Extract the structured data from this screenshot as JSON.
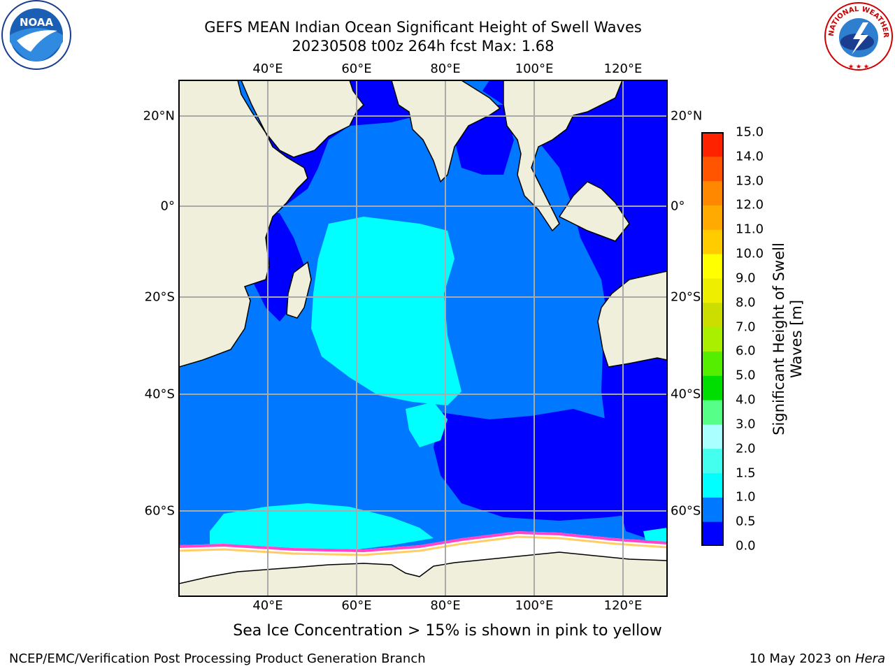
{
  "title_line1": "GEFS MEAN Indian Ocean Significant Height of Swell Waves",
  "title_line2": "20230508 t00z 264h fcst   Max: 1.68",
  "map": {
    "lon_range": [
      20,
      130
    ],
    "lat_range": [
      -78,
      27
    ],
    "lon_ticks": [
      {
        "value": 40,
        "label": "40°E"
      },
      {
        "value": 60,
        "label": "60°E"
      },
      {
        "value": 80,
        "label": "80°E"
      },
      {
        "value": 100,
        "label": "100°E"
      },
      {
        "value": 120,
        "label": "120°E"
      }
    ],
    "lat_ticks": [
      {
        "value": 20,
        "label": "20°N"
      },
      {
        "value": 0,
        "label": "0°"
      },
      {
        "value": -20,
        "label": "20°S"
      },
      {
        "value": -40,
        "label": "40°S"
      },
      {
        "value": -60,
        "label": "60°S"
      }
    ],
    "grid": true
  },
  "colorbar": {
    "title_line1": "Significant Height of Swell",
    "title_line2": "Waves [m]",
    "levels": [
      "0.0",
      "0.5",
      "1.0",
      "1.5",
      "2.0",
      "3.0",
      "4.0",
      "5.0",
      "6.0",
      "7.0",
      "8.0",
      "9.0",
      "10.0",
      "11.0",
      "12.0",
      "13.0",
      "14.0",
      "15.0"
    ],
    "colors": [
      "#0000ff",
      "#0078ff",
      "#00ffff",
      "#44ffee",
      "#aaffff",
      "#55ff88",
      "#00dd00",
      "#55ee00",
      "#aaee00",
      "#ccdd00",
      "#eeee00",
      "#ffff00",
      "#ffcc00",
      "#ffaa00",
      "#ff8800",
      "#ff5500",
      "#ff2200"
    ]
  },
  "note": "Sea Ice Concentration > 15% is shown in pink to yellow",
  "footer_left": "NCEP/EMC/Verification Post Processing Product Generation Branch",
  "footer_right_date": "10 May 2023 on",
  "footer_right_host": "Hera",
  "logo_left_text": "NOAA",
  "logo_right_text": "NATIONAL WEATHER SERVICE"
}
